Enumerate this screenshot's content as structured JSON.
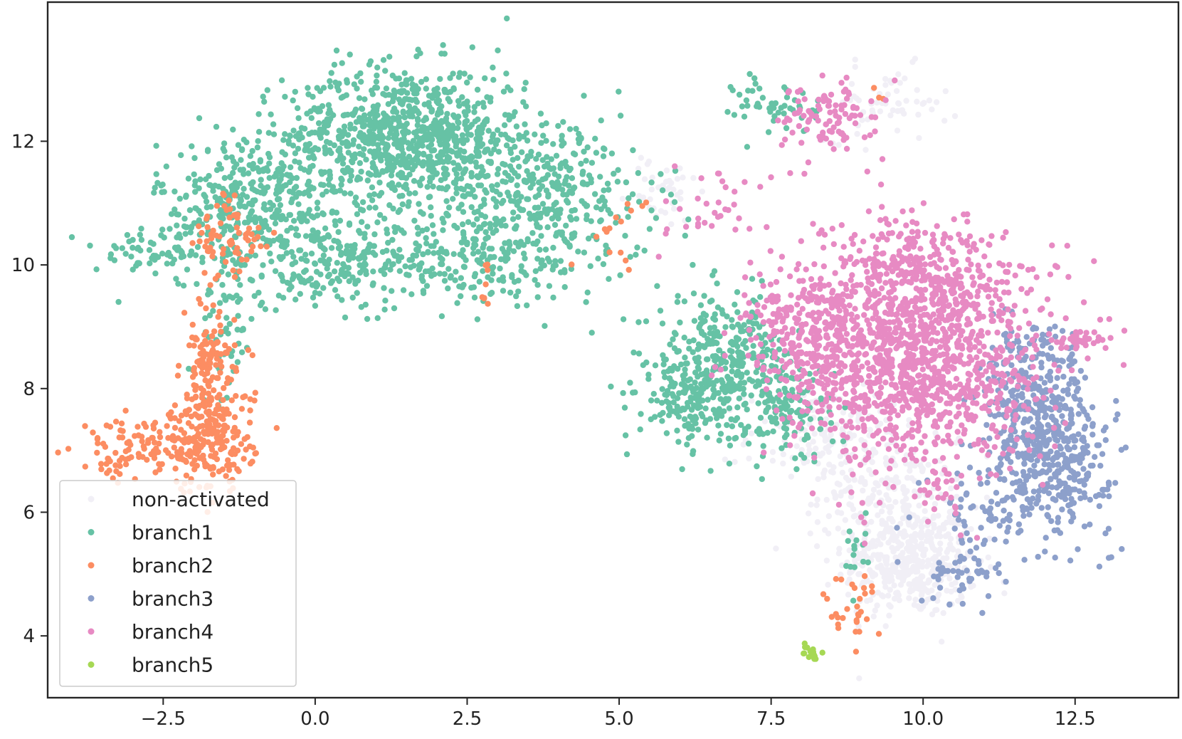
{
  "chart_data": {
    "type": "scatter",
    "title": "",
    "xlabel": "",
    "ylabel": "",
    "xlim": [
      -4.4,
      14.2
    ],
    "ylim": [
      3.0,
      14.25
    ],
    "x_ticks": [
      -2.5,
      0.0,
      2.5,
      5.0,
      7.5,
      10.0,
      12.5
    ],
    "x_tick_labels": [
      "−2.5",
      "0.0",
      "2.5",
      "5.0",
      "7.5",
      "10.0",
      "12.5"
    ],
    "y_ticks": [
      4,
      6,
      8,
      10,
      12
    ],
    "y_tick_labels": [
      "4",
      "6",
      "8",
      "10",
      "12"
    ],
    "grid": false,
    "legend_position": "lower-left",
    "series": [
      {
        "name": "non-activated",
        "color": "#f1eff6",
        "clusters": [
          {
            "cx": 9.8,
            "cy": 5.2,
            "sx": 0.55,
            "sy": 0.45,
            "n": 420
          },
          {
            "cx": 9.4,
            "cy": 6.3,
            "sx": 0.55,
            "sy": 0.45,
            "n": 180
          },
          {
            "cx": 8.5,
            "cy": 7.2,
            "sx": 0.7,
            "sy": 0.4,
            "n": 140
          },
          {
            "cx": 9.4,
            "cy": 12.6,
            "sx": 0.5,
            "sy": 0.3,
            "n": 60
          },
          {
            "cx": 5.7,
            "cy": 11.2,
            "sx": 0.3,
            "sy": 0.3,
            "n": 40
          }
        ]
      },
      {
        "name": "branch1",
        "color": "#66c2a5",
        "clusters": [
          {
            "cx": 1.5,
            "cy": 12.1,
            "sx": 1.0,
            "sy": 0.55,
            "n": 900
          },
          {
            "cx": -1.0,
            "cy": 11.0,
            "sx": 0.8,
            "sy": 0.5,
            "n": 380
          },
          {
            "cx": 3.8,
            "cy": 11.2,
            "sx": 0.9,
            "sy": 0.55,
            "n": 320
          },
          {
            "cx": 0.4,
            "cy": 10.0,
            "sx": 1.2,
            "sy": 0.35,
            "n": 260
          },
          {
            "cx": 2.9,
            "cy": 10.1,
            "sx": 1.0,
            "sy": 0.35,
            "n": 200
          },
          {
            "cx": -2.8,
            "cy": 10.2,
            "sx": 0.4,
            "sy": 0.15,
            "n": 50
          },
          {
            "cx": -1.5,
            "cy": 9.0,
            "sx": 0.25,
            "sy": 0.7,
            "n": 70
          },
          {
            "cx": 6.7,
            "cy": 8.5,
            "sx": 0.55,
            "sy": 0.5,
            "n": 300
          },
          {
            "cx": 6.2,
            "cy": 7.8,
            "sx": 0.45,
            "sy": 0.35,
            "n": 150
          },
          {
            "cx": 7.8,
            "cy": 7.6,
            "sx": 0.35,
            "sy": 0.4,
            "n": 120
          },
          {
            "cx": 7.6,
            "cy": 12.6,
            "sx": 0.35,
            "sy": 0.25,
            "n": 50
          },
          {
            "cx": 8.9,
            "cy": 5.3,
            "sx": 0.1,
            "sy": 0.4,
            "n": 15
          }
        ]
      },
      {
        "name": "branch2",
        "color": "#fc8d62",
        "clusters": [
          {
            "cx": -1.7,
            "cy": 7.2,
            "sx": 0.35,
            "sy": 0.45,
            "n": 220
          },
          {
            "cx": -1.75,
            "cy": 8.4,
            "sx": 0.22,
            "sy": 0.4,
            "n": 100
          },
          {
            "cx": -2.8,
            "cy": 7.1,
            "sx": 0.55,
            "sy": 0.2,
            "n": 90
          },
          {
            "cx": -1.4,
            "cy": 10.3,
            "sx": 0.3,
            "sy": 0.45,
            "n": 70
          },
          {
            "cx": -3.3,
            "cy": 6.75,
            "sx": 0.15,
            "sy": 0.15,
            "n": 15
          },
          {
            "cx": 5.0,
            "cy": 10.6,
            "sx": 0.3,
            "sy": 0.3,
            "n": 15
          },
          {
            "cx": 2.8,
            "cy": 9.5,
            "sx": 0.05,
            "sy": 0.3,
            "n": 8
          },
          {
            "cx": 8.8,
            "cy": 4.5,
            "sx": 0.25,
            "sy": 0.3,
            "n": 30
          },
          {
            "cx": 9.3,
            "cy": 12.8,
            "sx": 0.1,
            "sy": 0.15,
            "n": 3
          }
        ]
      },
      {
        "name": "branch3",
        "color": "#8da0cb",
        "clusters": [
          {
            "cx": 12.1,
            "cy": 6.9,
            "sx": 0.5,
            "sy": 0.6,
            "n": 420
          },
          {
            "cx": 11.7,
            "cy": 7.9,
            "sx": 0.35,
            "sy": 0.4,
            "n": 150
          },
          {
            "cx": 11.9,
            "cy": 8.7,
            "sx": 0.3,
            "sy": 0.25,
            "n": 50
          },
          {
            "cx": 10.7,
            "cy": 5.1,
            "sx": 0.35,
            "sy": 0.3,
            "n": 60
          },
          {
            "cx": 11.0,
            "cy": 6.1,
            "sx": 0.45,
            "sy": 0.35,
            "n": 40
          }
        ]
      },
      {
        "name": "branch4",
        "color": "#e78ac3",
        "clusters": [
          {
            "cx": 9.8,
            "cy": 8.5,
            "sx": 1.1,
            "sy": 0.85,
            "n": 1300
          },
          {
            "cx": 9.9,
            "cy": 10.0,
            "sx": 0.7,
            "sy": 0.45,
            "n": 250
          },
          {
            "cx": 8.1,
            "cy": 8.8,
            "sx": 0.5,
            "sy": 0.45,
            "n": 180
          },
          {
            "cx": 12.6,
            "cy": 8.8,
            "sx": 0.2,
            "sy": 0.08,
            "n": 35
          },
          {
            "cx": 8.4,
            "cy": 12.4,
            "sx": 0.4,
            "sy": 0.3,
            "n": 100
          },
          {
            "cx": 6.7,
            "cy": 10.9,
            "sx": 0.55,
            "sy": 0.3,
            "n": 35
          },
          {
            "cx": 10.3,
            "cy": 6.3,
            "sx": 0.2,
            "sy": 0.3,
            "n": 25
          }
        ]
      },
      {
        "name": "branch5",
        "color": "#a6d854",
        "clusters": [
          {
            "cx": 8.15,
            "cy": 3.72,
            "sx": 0.06,
            "sy": 0.08,
            "n": 18
          }
        ]
      }
    ]
  }
}
